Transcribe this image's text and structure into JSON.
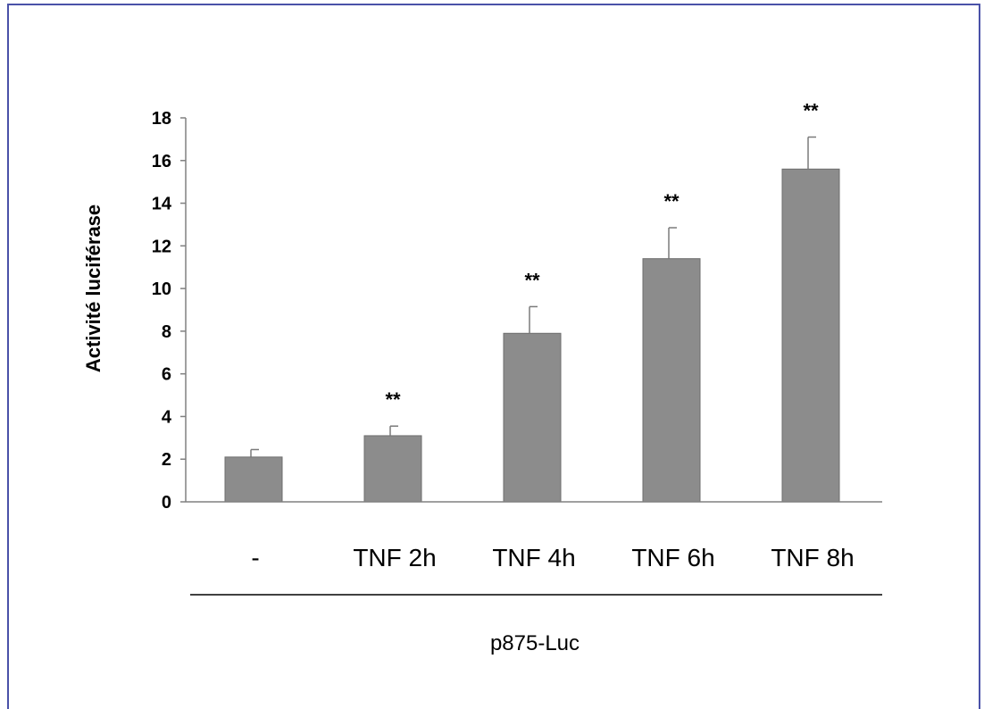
{
  "chart_data": {
    "type": "bar",
    "categories": [
      "-",
      "TNF 2h",
      "TNF 4h",
      "TNF 6h",
      "TNF 8h"
    ],
    "values": [
      2.1,
      3.1,
      7.9,
      11.4,
      15.6
    ],
    "errors": [
      0.35,
      0.45,
      1.25,
      1.45,
      1.5
    ],
    "significance": [
      "",
      "**",
      "**",
      "**",
      "**"
    ],
    "ylabel": "Activité luciférase",
    "xlabel": "p875-Luc",
    "ylim": [
      0,
      18
    ],
    "yticks": [
      0,
      2,
      4,
      6,
      8,
      10,
      12,
      14,
      16,
      18
    ],
    "bar_color": "#8c8c8c",
    "grid": false
  }
}
